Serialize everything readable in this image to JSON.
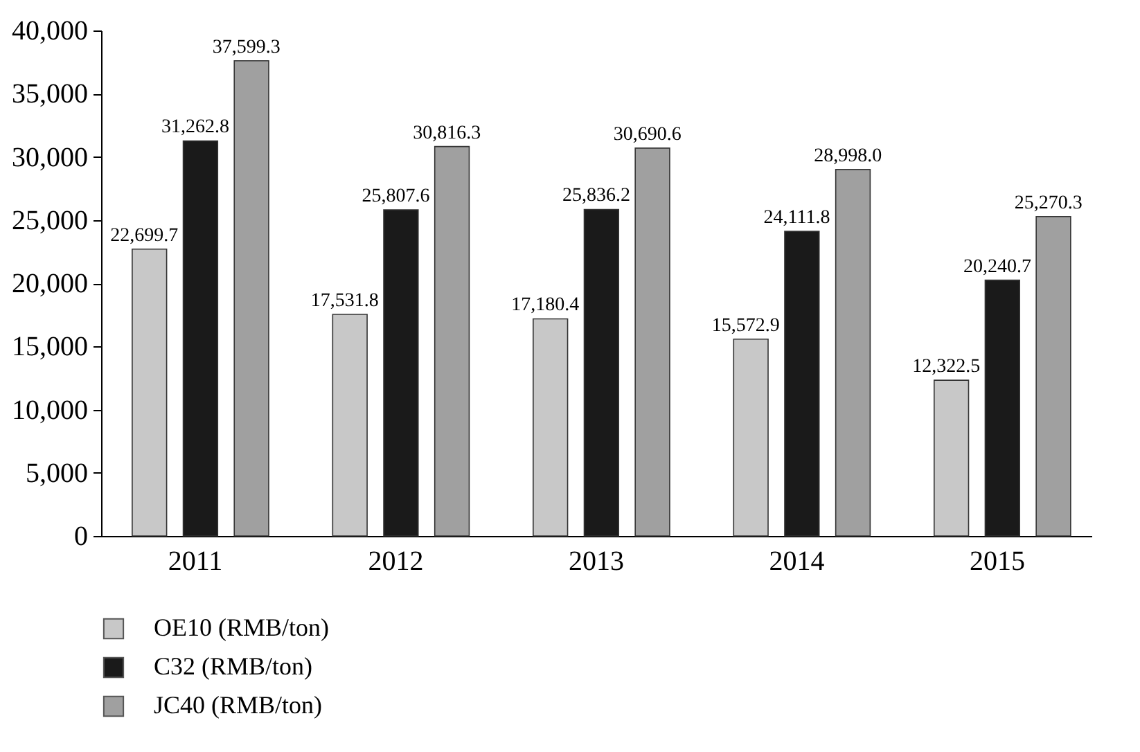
{
  "chart_data": {
    "type": "bar",
    "categories": [
      "2011",
      "2012",
      "2013",
      "2014",
      "2015"
    ],
    "series": [
      {
        "name": "OE10 (RMB/ton)",
        "color": "#c8c8c8",
        "values": [
          22699.7,
          17531.8,
          17180.4,
          15572.9,
          12322.5
        ],
        "value_labels": [
          "22,699.7",
          "17,531.8",
          "17,180.4",
          "15,572.9",
          "12,322.5"
        ]
      },
      {
        "name": "C32 (RMB/ton)",
        "color": "#1a1a1a",
        "values": [
          31262.8,
          25807.6,
          25836.2,
          24111.8,
          20240.7
        ],
        "value_labels": [
          "31,262.8",
          "25,807.6",
          "25,836.2",
          "24,111.8",
          "20,240.7"
        ]
      },
      {
        "name": "JC40 (RMB/ton)",
        "color": "#a0a0a0",
        "values": [
          37599.3,
          30816.3,
          30690.6,
          28998.0,
          25270.3
        ],
        "value_labels": [
          "37,599.3",
          "30,816.3",
          "30,690.6",
          "28,998.0",
          "25,270.3"
        ]
      }
    ],
    "ylim": [
      0,
      40000
    ],
    "yticks": [
      0,
      {
        "value": 5000,
        "label": "5,000"
      },
      {
        "value": 10000,
        "label": "10,000"
      },
      {
        "value": 15000,
        "label": "15,000"
      },
      {
        "value": 20000,
        "label": "20,000"
      },
      {
        "value": 25000,
        "label": "25,000"
      },
      {
        "value": 30000,
        "label": "30,000"
      },
      {
        "value": 35000,
        "label": "35,000"
      },
      {
        "value": 40000,
        "label": "40,000"
      }
    ],
    "legend": "bottom",
    "grid": false
  }
}
